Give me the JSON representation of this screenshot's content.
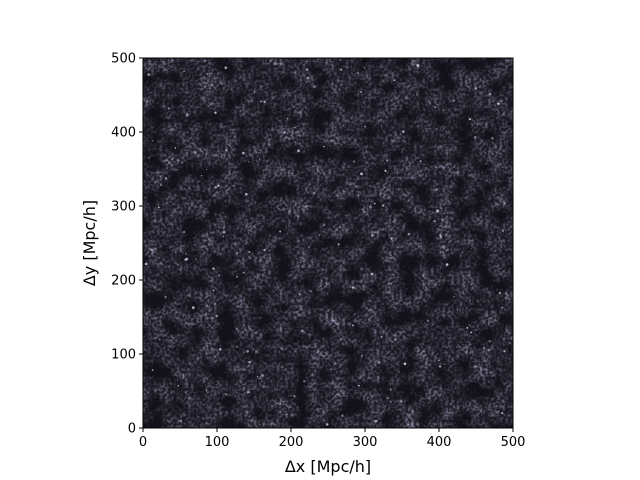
{
  "chart_data": {
    "type": "heatmap",
    "title": "",
    "xlabel": "Δx [Mpc/h]",
    "ylabel": "Δy [Mpc/h]",
    "xlim": [
      0,
      500
    ],
    "ylim": [
      0,
      500
    ],
    "x_ticks": [
      0,
      100,
      200,
      300,
      400,
      500
    ],
    "y_ticks": [
      0,
      100,
      200,
      300,
      400,
      500
    ],
    "x_tick_labels": [
      "0",
      "100",
      "200",
      "300",
      "400",
      "500"
    ],
    "y_tick_labels": [
      "0",
      "100",
      "200",
      "300",
      "400",
      "500"
    ],
    "grid": false,
    "legend": "none",
    "colorbar": "none",
    "aspect": "equal",
    "description_of_field": "projected dark matter density slice (cosmic web)",
    "colormap": {
      "name": "bone-like",
      "low": "#0b0a10",
      "mid": "#2a283a",
      "high": "#e8e8ff"
    }
  }
}
